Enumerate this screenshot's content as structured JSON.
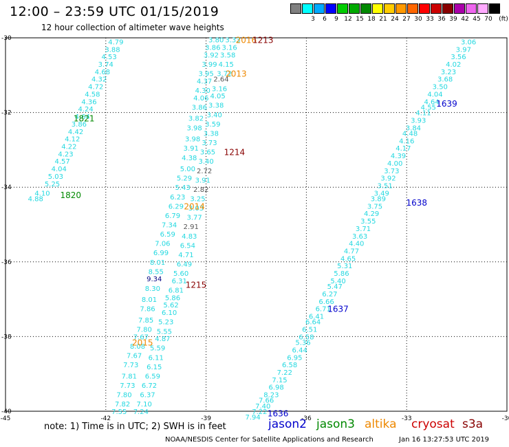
{
  "header": {
    "title": "12:00 – 23:59 UTC 01/15/2019",
    "subtitle": "12 hour collection of altimeter wave heights"
  },
  "color_scale": {
    "unit": "(ft)",
    "levels": [
      {
        "color": "#808080",
        "label": ""
      },
      {
        "color": "#00ffff",
        "label": "3"
      },
      {
        "color": "#00aaff",
        "label": "6"
      },
      {
        "color": "#0000ff",
        "label": "9"
      },
      {
        "color": "#00cc00",
        "label": "12"
      },
      {
        "color": "#00aa00",
        "label": "15"
      },
      {
        "color": "#008800",
        "label": "18"
      },
      {
        "color": "#ffff00",
        "label": "21"
      },
      {
        "color": "#ffcc00",
        "label": "24"
      },
      {
        "color": "#ff9900",
        "label": "27"
      },
      {
        "color": "#ff6600",
        "label": "30"
      },
      {
        "color": "#ff0000",
        "label": "33"
      },
      {
        "color": "#cc0000",
        "label": "36"
      },
      {
        "color": "#880000",
        "label": "39"
      },
      {
        "color": "#aa00aa",
        "label": "42"
      },
      {
        "color": "#ee66ee",
        "label": "45"
      },
      {
        "color": "#ffaaff",
        "label": "70"
      },
      {
        "color": "#000000",
        "label": ""
      }
    ]
  },
  "map": {
    "lon_range": [
      -45,
      -30
    ],
    "lat_range": [
      -40,
      -30
    ],
    "x_ticks": [
      "-45",
      "-42",
      "-39",
      "-36",
      "-33",
      "-30"
    ],
    "y_ticks": [
      "-30",
      "-32",
      "-34",
      "-36",
      "-38",
      "-40"
    ],
    "colors": {
      "obs": "#22d8e0",
      "obs_dark": "#000080",
      "obs_gray": "#555555",
      "jason2": "#0000cc",
      "jason3": "#008800",
      "altika": "#ee8800",
      "cryosat": "#cc0000",
      "s3a": "#880000"
    }
  },
  "tracks": [
    {
      "name": "track-west",
      "labels": [
        {
          "text": "1821",
          "lon": -42.65,
          "lat": -32.15,
          "sat": "jason3"
        },
        {
          "text": "1820",
          "lon": -43.05,
          "lat": -34.2,
          "sat": "jason3"
        }
      ],
      "values": [
        {
          "v": "4.79",
          "lon": -41.7,
          "lat": -30.1
        },
        {
          "v": "3.88",
          "lon": -41.8,
          "lat": -30.3
        },
        {
          "v": "4.53",
          "lon": -41.9,
          "lat": -30.5
        },
        {
          "v": "3.74",
          "lon": -42.0,
          "lat": -30.7
        },
        {
          "v": "4.68",
          "lon": -42.1,
          "lat": -30.9
        },
        {
          "v": "4.32",
          "lon": -42.2,
          "lat": -31.1
        },
        {
          "v": "4.72",
          "lon": -42.3,
          "lat": -31.3
        },
        {
          "v": "4.58",
          "lon": -42.4,
          "lat": -31.5
        },
        {
          "v": "4.36",
          "lon": -42.5,
          "lat": -31.7
        },
        {
          "v": "4.24",
          "lon": -42.6,
          "lat": -31.9
        },
        {
          "v": "4.64",
          "lon": -42.7,
          "lat": -32.1
        },
        {
          "v": "3.86",
          "lon": -42.8,
          "lat": -32.3
        },
        {
          "v": "4.42",
          "lon": -42.9,
          "lat": -32.5
        },
        {
          "v": "4.12",
          "lon": -43.0,
          "lat": -32.7
        },
        {
          "v": "4.22",
          "lon": -43.1,
          "lat": -32.9
        },
        {
          "v": "4.23",
          "lon": -43.2,
          "lat": -33.1
        },
        {
          "v": "4.57",
          "lon": -43.3,
          "lat": -33.3
        },
        {
          "v": "4.04",
          "lon": -43.4,
          "lat": -33.5
        },
        {
          "v": "5.03",
          "lon": -43.5,
          "lat": -33.7
        },
        {
          "v": "5.25",
          "lon": -43.6,
          "lat": -33.9
        },
        {
          "v": "4.10",
          "lon": -43.9,
          "lat": -34.15
        },
        {
          "v": "4.88",
          "lon": -44.1,
          "lat": -34.3
        }
      ]
    },
    {
      "name": "track-center",
      "labels": [
        {
          "text": "2016",
          "lon": -37.8,
          "lat": -30.05,
          "sat": "altika"
        },
        {
          "text": "1213",
          "lon": -37.3,
          "lat": -30.05,
          "sat": "s3a"
        },
        {
          "text": "2013",
          "lon": -38.1,
          "lat": -30.95,
          "sat": "altika"
        },
        {
          "text": "1214",
          "lon": -38.15,
          "lat": -33.05,
          "sat": "s3a"
        },
        {
          "text": "2014",
          "lon": -39.35,
          "lat": -34.5,
          "sat": "altika"
        },
        {
          "text": "1215",
          "lon": -39.3,
          "lat": -36.6,
          "sat": "s3a"
        },
        {
          "text": "2015",
          "lon": -40.9,
          "lat": -38.15,
          "sat": "altika"
        }
      ],
      "values": [
        {
          "v": "3.80",
          "lon": -38.7,
          "lat": -30.05
        },
        {
          "v": "3.33",
          "lon": -38.2,
          "lat": -30.05
        },
        {
          "v": "3.86",
          "lon": -38.8,
          "lat": -30.25
        },
        {
          "v": "3.16",
          "lon": -38.3,
          "lat": -30.25
        },
        {
          "v": "3.92",
          "lon": -38.85,
          "lat": -30.45
        },
        {
          "v": "3.58",
          "lon": -38.35,
          "lat": -30.45
        },
        {
          "v": "3.99",
          "lon": -38.9,
          "lat": -30.7
        },
        {
          "v": "4.15",
          "lon": -38.4,
          "lat": -30.7
        },
        {
          "v": "3.95",
          "lon": -39.0,
          "lat": -30.95
        },
        {
          "v": "3.72",
          "lon": -38.45,
          "lat": -30.95
        },
        {
          "v": "4.37",
          "lon": -39.05,
          "lat": -31.15
        },
        {
          "v": "2.64",
          "lon": -38.55,
          "lat": -31.1,
          "c": "obs_gray"
        },
        {
          "v": "4.30",
          "lon": -39.1,
          "lat": -31.4
        },
        {
          "v": "3.16",
          "lon": -38.6,
          "lat": -31.35
        },
        {
          "v": "4.06",
          "lon": -39.15,
          "lat": -31.6
        },
        {
          "v": "4.05",
          "lon": -38.65,
          "lat": -31.55
        },
        {
          "v": "3.86",
          "lon": -39.2,
          "lat": -31.85
        },
        {
          "v": "3.38",
          "lon": -38.7,
          "lat": -31.8
        },
        {
          "v": "3.82",
          "lon": -39.3,
          "lat": -32.15
        },
        {
          "v": "3.40",
          "lon": -38.75,
          "lat": -32.05
        },
        {
          "v": "3.98",
          "lon": -39.35,
          "lat": -32.4
        },
        {
          "v": "3.59",
          "lon": -38.8,
          "lat": -32.3
        },
        {
          "v": "3.38",
          "lon": -38.85,
          "lat": -32.55
        },
        {
          "v": "3.98",
          "lon": -39.4,
          "lat": -32.7
        },
        {
          "v": "3.73",
          "lon": -38.9,
          "lat": -32.8
        },
        {
          "v": "3.91",
          "lon": -39.45,
          "lat": -32.95
        },
        {
          "v": "3.65",
          "lon": -38.95,
          "lat": -33.05
        },
        {
          "v": "4.38",
          "lon": -39.5,
          "lat": -33.2
        },
        {
          "v": "3.40",
          "lon": -39.0,
          "lat": -33.3
        },
        {
          "v": "5.00",
          "lon": -39.55,
          "lat": -33.5
        },
        {
          "v": "2.72",
          "lon": -39.05,
          "lat": -33.55,
          "c": "obs_gray"
        },
        {
          "v": "5.29",
          "lon": -39.65,
          "lat": -33.75
        },
        {
          "v": "3.91",
          "lon": -39.1,
          "lat": -33.8
        },
        {
          "v": "5.43",
          "lon": -39.7,
          "lat": -34.0
        },
        {
          "v": "2.82",
          "lon": -39.15,
          "lat": -34.05,
          "c": "obs_gray"
        },
        {
          "v": "6.23",
          "lon": -39.85,
          "lat": -34.25
        },
        {
          "v": "3.25",
          "lon": -39.25,
          "lat": -34.3
        },
        {
          "v": "6.29",
          "lon": -39.9,
          "lat": -34.5
        },
        {
          "v": "3.03",
          "lon": -39.3,
          "lat": -34.55
        },
        {
          "v": "6.79",
          "lon": -40.0,
          "lat": -34.75
        },
        {
          "v": "3.77",
          "lon": -39.35,
          "lat": -34.8
        },
        {
          "v": "7.34",
          "lon": -40.1,
          "lat": -35.0
        },
        {
          "v": "2.91",
          "lon": -39.45,
          "lat": -35.05,
          "c": "obs_gray"
        },
        {
          "v": "6.59",
          "lon": -40.15,
          "lat": -35.25
        },
        {
          "v": "4.83",
          "lon": -39.5,
          "lat": -35.3
        },
        {
          "v": "7.06",
          "lon": -40.3,
          "lat": -35.5
        },
        {
          "v": "6.54",
          "lon": -39.55,
          "lat": -35.55
        },
        {
          "v": "6.99",
          "lon": -40.35,
          "lat": -35.75
        },
        {
          "v": "4.71",
          "lon": -39.6,
          "lat": -35.8
        },
        {
          "v": "8.01",
          "lon": -40.45,
          "lat": -36.0
        },
        {
          "v": "6.49",
          "lon": -39.65,
          "lat": -36.05
        },
        {
          "v": "8.55",
          "lon": -40.5,
          "lat": -36.25
        },
        {
          "v": "5.60",
          "lon": -39.75,
          "lat": -36.3
        },
        {
          "v": "9.34",
          "lon": -40.55,
          "lat": -36.45,
          "c": "obs_dark"
        },
        {
          "v": "6.31",
          "lon": -39.8,
          "lat": -36.5
        },
        {
          "v": "8.30",
          "lon": -40.6,
          "lat": -36.7
        },
        {
          "v": "6.81",
          "lon": -39.9,
          "lat": -36.75
        },
        {
          "v": "5.86",
          "lon": -40.0,
          "lat": -36.95
        },
        {
          "v": "8.01",
          "lon": -40.7,
          "lat": -37.0
        },
        {
          "v": "5.62",
          "lon": -40.05,
          "lat": -37.15
        },
        {
          "v": "7.86",
          "lon": -40.75,
          "lat": -37.25
        },
        {
          "v": "6.10",
          "lon": -40.1,
          "lat": -37.35
        },
        {
          "v": "7.85",
          "lon": -40.8,
          "lat": -37.55
        },
        {
          "v": "5.23",
          "lon": -40.2,
          "lat": -37.6
        },
        {
          "v": "7.80",
          "lon": -40.85,
          "lat": -37.8
        },
        {
          "v": "5.55",
          "lon": -40.25,
          "lat": -37.85
        },
        {
          "v": "7.67",
          "lon": -40.95,
          "lat": -38.0
        },
        {
          "v": "4.87",
          "lon": -40.3,
          "lat": -38.05
        },
        {
          "v": "8.08",
          "lon": -41.05,
          "lat": -38.25
        },
        {
          "v": "5.59",
          "lon": -40.45,
          "lat": -38.3
        },
        {
          "v": "7.67",
          "lon": -41.15,
          "lat": -38.5
        },
        {
          "v": "6.11",
          "lon": -40.5,
          "lat": -38.55
        },
        {
          "v": "7.73",
          "lon": -41.25,
          "lat": -38.75
        },
        {
          "v": "6.15",
          "lon": -40.55,
          "lat": -38.8
        },
        {
          "v": "7.81",
          "lon": -41.3,
          "lat": -39.05
        },
        {
          "v": "6.59",
          "lon": -40.6,
          "lat": -39.05
        },
        {
          "v": "7.73",
          "lon": -41.35,
          "lat": -39.3
        },
        {
          "v": "6.72",
          "lon": -40.7,
          "lat": -39.3
        },
        {
          "v": "7.80",
          "lon": -41.45,
          "lat": -39.55
        },
        {
          "v": "6.37",
          "lon": -40.75,
          "lat": -39.55
        },
        {
          "v": "7.82",
          "lon": -41.5,
          "lat": -39.8
        },
        {
          "v": "7.10",
          "lon": -40.85,
          "lat": -39.8
        },
        {
          "v": "7.55",
          "lon": -41.6,
          "lat": -40.0
        },
        {
          "v": "7.24",
          "lon": -40.95,
          "lat": -40.0
        }
      ]
    },
    {
      "name": "track-east",
      "labels": [
        {
          "text": "1639",
          "lon": -31.8,
          "lat": -31.75,
          "sat": "jason2"
        },
        {
          "text": "1638",
          "lon": -32.7,
          "lat": -34.4,
          "sat": "jason2"
        },
        {
          "text": "1637",
          "lon": -35.05,
          "lat": -37.25,
          "sat": "jason2"
        },
        {
          "text": "1636",
          "lon": -36.85,
          "lat": -40.05,
          "sat": "jason2"
        }
      ],
      "values": [
        {
          "v": "3.06",
          "lon": -31.15,
          "lat": -30.1
        },
        {
          "v": "3.97",
          "lon": -31.3,
          "lat": -30.3
        },
        {
          "v": "3.56",
          "lon": -31.45,
          "lat": -30.5
        },
        {
          "v": "4.02",
          "lon": -31.6,
          "lat": -30.7
        },
        {
          "v": "3.23",
          "lon": -31.75,
          "lat": -30.9
        },
        {
          "v": "3.68",
          "lon": -31.85,
          "lat": -31.1
        },
        {
          "v": "3.50",
          "lon": -32.0,
          "lat": -31.3
        },
        {
          "v": "4.04",
          "lon": -32.15,
          "lat": -31.5
        },
        {
          "v": "4.64",
          "lon": -32.25,
          "lat": -31.7
        },
        {
          "v": "4.55",
          "lon": -32.35,
          "lat": -31.85
        },
        {
          "v": "4.11",
          "lon": -32.5,
          "lat": -32.0
        },
        {
          "v": "3.93",
          "lon": -32.65,
          "lat": -32.2
        },
        {
          "v": "3.84",
          "lon": -32.8,
          "lat": -32.4
        },
        {
          "v": "4.48",
          "lon": -32.9,
          "lat": -32.55
        },
        {
          "v": "4.16",
          "lon": -33.0,
          "lat": -32.75
        },
        {
          "v": "4.17",
          "lon": -33.1,
          "lat": -32.95
        },
        {
          "v": "4.39",
          "lon": -33.25,
          "lat": -33.15
        },
        {
          "v": "4.00",
          "lon": -33.35,
          "lat": -33.35
        },
        {
          "v": "3.73",
          "lon": -33.45,
          "lat": -33.55
        },
        {
          "v": "3.92",
          "lon": -33.55,
          "lat": -33.75
        },
        {
          "v": "3.51",
          "lon": -33.65,
          "lat": -33.95
        },
        {
          "v": "3.49",
          "lon": -33.75,
          "lat": -34.15
        },
        {
          "v": "3.89",
          "lon": -33.85,
          "lat": -34.3
        },
        {
          "v": "3.75",
          "lon": -33.95,
          "lat": -34.5
        },
        {
          "v": "4.29",
          "lon": -34.05,
          "lat": -34.7
        },
        {
          "v": "3.55",
          "lon": -34.15,
          "lat": -34.9
        },
        {
          "v": "3.71",
          "lon": -34.3,
          "lat": -35.1
        },
        {
          "v": "3.63",
          "lon": -34.4,
          "lat": -35.3
        },
        {
          "v": "4.40",
          "lon": -34.5,
          "lat": -35.5
        },
        {
          "v": "4.77",
          "lon": -34.65,
          "lat": -35.7
        },
        {
          "v": "4.65",
          "lon": -34.75,
          "lat": -35.9
        },
        {
          "v": "5.31",
          "lon": -34.85,
          "lat": -36.1
        },
        {
          "v": "5.86",
          "lon": -34.95,
          "lat": -36.3
        },
        {
          "v": "5.40",
          "lon": -35.05,
          "lat": -36.5
        },
        {
          "v": "5.47",
          "lon": -35.15,
          "lat": -36.65
        },
        {
          "v": "6.27",
          "lon": -35.3,
          "lat": -36.85
        },
        {
          "v": "6.66",
          "lon": -35.4,
          "lat": -37.05
        },
        {
          "v": "6.71",
          "lon": -35.5,
          "lat": -37.25
        },
        {
          "v": "6.41",
          "lon": -35.7,
          "lat": -37.45
        },
        {
          "v": "6.64",
          "lon": -35.8,
          "lat": -37.6
        },
        {
          "v": "6.51",
          "lon": -35.9,
          "lat": -37.8
        },
        {
          "v": "6.58",
          "lon": -36.0,
          "lat": -38.0
        },
        {
          "v": "5.36",
          "lon": -36.1,
          "lat": -38.15
        },
        {
          "v": "6.44",
          "lon": -36.2,
          "lat": -38.35
        },
        {
          "v": "6.95",
          "lon": -36.35,
          "lat": -38.55
        },
        {
          "v": "6.58",
          "lon": -36.5,
          "lat": -38.75
        },
        {
          "v": "7.22",
          "lon": -36.65,
          "lat": -38.95
        },
        {
          "v": "7.15",
          "lon": -36.8,
          "lat": -39.15
        },
        {
          "v": "6.98",
          "lon": -36.9,
          "lat": -39.35
        },
        {
          "v": "8.23",
          "lon": -37.05,
          "lat": -39.55
        },
        {
          "v": "7.66",
          "lon": -37.2,
          "lat": -39.7
        },
        {
          "v": "7.40",
          "lon": -37.3,
          "lat": -39.85
        },
        {
          "v": "7.22",
          "lon": -37.4,
          "lat": -40.0
        },
        {
          "v": "7.94",
          "lon": -37.6,
          "lat": -40.15
        }
      ]
    }
  ],
  "note": "note:  1) Time is in UTC; 2) SWH is in feet",
  "legend_sats": [
    {
      "key": "jason2",
      "label": "jason2"
    },
    {
      "key": "jason3",
      "label": "jason3"
    },
    {
      "key": "altika",
      "label": "altika"
    },
    {
      "key": "cryosat",
      "label": "cryosat"
    },
    {
      "key": "s3a",
      "label": "s3a"
    }
  ],
  "footer": {
    "credit": "NOAA/NESDIS Center for Satellite Applications and Research",
    "timestamp": "Jan 16 13:27:53 UTC 2019"
  }
}
